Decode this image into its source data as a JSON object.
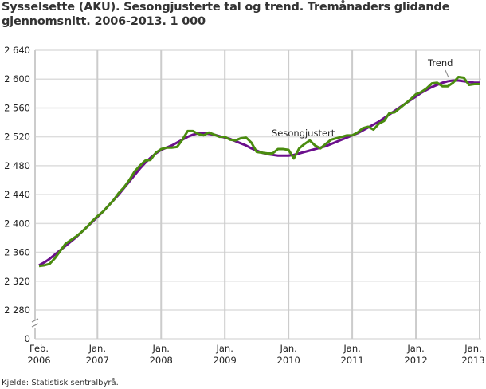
{
  "chart_data": {
    "type": "line",
    "title": "Sysselsette (AKU).  Sesongjusterte tal og trend. Tremånaders glidande gjennomsnitt. 2006-2013. 1 000",
    "source": "Kjelde: Statistisk sentralbyrå.",
    "y_ticks": [
      "2 640",
      "2 600",
      "2 560",
      "2 520",
      "2 480",
      "2 440",
      "2 400",
      "2 360",
      "2 320",
      "2 280",
      "0"
    ],
    "y_tick_values": [
      2640,
      2600,
      2560,
      2520,
      2480,
      2440,
      2400,
      2360,
      2320,
      2280
    ],
    "ylim": [
      2280,
      2640
    ],
    "y_axis_break": true,
    "x_ticks": [
      [
        "Feb.",
        "2006"
      ],
      [
        "Jan.",
        "2007"
      ],
      [
        "Jan.",
        "2008"
      ],
      [
        "Jan.",
        "2009"
      ],
      [
        "Jan.",
        "2010"
      ],
      [
        "Jan.",
        "2011"
      ],
      [
        "Jan.",
        "2012"
      ],
      [
        "Jan.",
        "2013"
      ]
    ],
    "x_start": "2006-02",
    "x_end": "2013-01",
    "frequency": "monthly",
    "grid": true,
    "series": [
      {
        "name": "Sesongjustert",
        "color": "#4a8c0f",
        "values": [
          2341,
          2342,
          2344,
          2352,
          2362,
          2372,
          2377,
          2382,
          2388,
          2395,
          2403,
          2410,
          2416,
          2424,
          2432,
          2442,
          2450,
          2460,
          2472,
          2480,
          2487,
          2488,
          2498,
          2503,
          2505,
          2505,
          2506,
          2516,
          2528,
          2528,
          2524,
          2522,
          2526,
          2523,
          2520,
          2520,
          2516,
          2515,
          2518,
          2519,
          2512,
          2499,
          2498,
          2497,
          2497,
          2503,
          2503,
          2502,
          2490,
          2504,
          2510,
          2515,
          2508,
          2504,
          2510,
          2516,
          2518,
          2520,
          2522,
          2522,
          2526,
          2532,
          2534,
          2530,
          2538,
          2542,
          2553,
          2554,
          2560,
          2566,
          2572,
          2579,
          2582,
          2587,
          2594,
          2595,
          2590,
          2590,
          2595,
          2603,
          2602,
          2592,
          2593,
          2593
        ]
      },
      {
        "name": "Trend",
        "color": "#6b0f8c",
        "values": [
          2342,
          2346,
          2351,
          2357,
          2363,
          2369,
          2375,
          2381,
          2388,
          2395,
          2402,
          2409,
          2416,
          2424,
          2432,
          2440,
          2449,
          2458,
          2467,
          2476,
          2484,
          2491,
          2497,
          2502,
          2505,
          2508,
          2512,
          2516,
          2520,
          2523,
          2525,
          2525,
          2524,
          2523,
          2521,
          2519,
          2517,
          2514,
          2511,
          2508,
          2504,
          2501,
          2498,
          2496,
          2495,
          2494,
          2494,
          2494,
          2495,
          2497,
          2499,
          2501,
          2503,
          2505,
          2507,
          2510,
          2513,
          2516,
          2519,
          2522,
          2525,
          2529,
          2533,
          2537,
          2541,
          2546,
          2551,
          2556,
          2561,
          2566,
          2571,
          2576,
          2581,
          2585,
          2589,
          2592,
          2595,
          2597,
          2598,
          2598,
          2597,
          2596,
          2595,
          2595
        ]
      }
    ]
  }
}
